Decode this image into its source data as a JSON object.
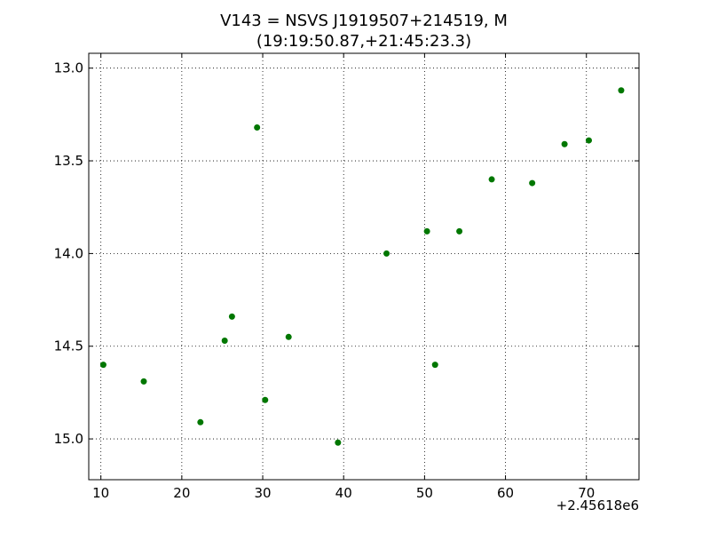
{
  "chart_data": {
    "type": "scatter",
    "title": "V143 = NSVS J1919507+214519, M",
    "subtitle": "(19:19:50.87,+21:45:23.3)",
    "xlabel": "",
    "ylabel": "",
    "x_offset_label": "+2.45618e6",
    "xlim": [
      8.5,
      76.5
    ],
    "ylim": [
      15.22,
      12.92
    ],
    "y_inverted": true,
    "grid": true,
    "marker_color": "#007700",
    "x_ticks": [
      10,
      20,
      30,
      40,
      50,
      60,
      70
    ],
    "x_tick_labels": [
      "10",
      "20",
      "30",
      "40",
      "50",
      "60",
      "70"
    ],
    "y_ticks": [
      13.0,
      13.5,
      14.0,
      14.5,
      15.0
    ],
    "y_tick_labels": [
      "13.0",
      "13.5",
      "14.0",
      "14.5",
      "15.0"
    ],
    "points": [
      {
        "x": 10.3,
        "y": 14.6
      },
      {
        "x": 15.3,
        "y": 14.69
      },
      {
        "x": 22.3,
        "y": 14.91
      },
      {
        "x": 25.3,
        "y": 14.47
      },
      {
        "x": 26.2,
        "y": 14.34
      },
      {
        "x": 29.3,
        "y": 13.32
      },
      {
        "x": 30.3,
        "y": 14.79
      },
      {
        "x": 33.2,
        "y": 14.45
      },
      {
        "x": 39.3,
        "y": 15.02
      },
      {
        "x": 45.3,
        "y": 14.0
      },
      {
        "x": 50.3,
        "y": 13.88
      },
      {
        "x": 51.3,
        "y": 14.6
      },
      {
        "x": 54.3,
        "y": 13.88
      },
      {
        "x": 58.3,
        "y": 13.6
      },
      {
        "x": 63.3,
        "y": 13.62
      },
      {
        "x": 67.3,
        "y": 13.41
      },
      {
        "x": 70.3,
        "y": 13.39
      },
      {
        "x": 74.3,
        "y": 13.12
      }
    ]
  }
}
